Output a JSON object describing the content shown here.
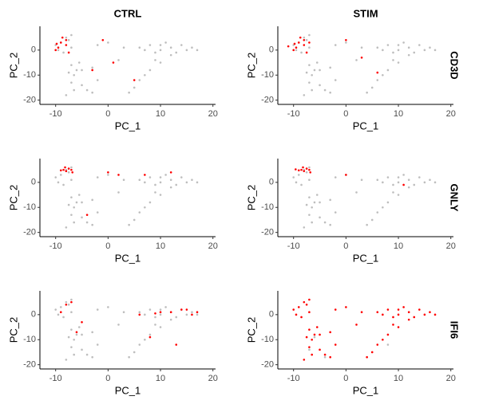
{
  "chart_data": [
    {
      "type": "scatter",
      "title": "CTRL",
      "xlabel": "PC_1",
      "ylabel": "PC_2",
      "xlim": [
        -13,
        20.5
      ],
      "ylim": [
        -21.7,
        9.5
      ],
      "xticks": [
        -10,
        0,
        10,
        20
      ],
      "yticks": [
        -20,
        -10,
        0
      ],
      "series": [
        {
          "color": "#bebebe",
          "x": [
            -9,
            -8,
            -7,
            -9.5,
            -8.5,
            -7.5,
            -10,
            -7,
            -7,
            -6,
            -5.5,
            -6.5,
            -7.5,
            -5,
            -7,
            -6.5,
            -8,
            -5,
            -4,
            -3,
            -2,
            6,
            8,
            10,
            12,
            14,
            11,
            9,
            13,
            15,
            16,
            7,
            10,
            12,
            17,
            10,
            8,
            6,
            5,
            7,
            4,
            9,
            0,
            -2,
            2,
            -3,
            3
          ],
          "y": [
            3,
            5,
            1,
            0,
            -1,
            4,
            2,
            6,
            -6,
            -8,
            -5,
            -10,
            -9,
            -8,
            -13,
            -16,
            -18,
            -14,
            -16,
            -17,
            -12,
            1,
            2,
            0,
            1,
            2,
            3,
            -1,
            -1,
            0,
            1,
            0,
            2,
            -2,
            0,
            -5,
            -8,
            -12,
            -15,
            -10,
            -17,
            -4,
            3,
            2,
            -4,
            -7,
            1
          ]
        },
        {
          "color": "#ff0000",
          "x": [
            -9,
            -8,
            -9.5,
            -8,
            -10,
            -7.5,
            -8.7,
            -9.8,
            1,
            5,
            -3,
            -1
          ],
          "y": [
            3,
            2,
            1,
            4,
            0,
            -1,
            5,
            2.5,
            -5,
            -12,
            -8,
            4
          ]
        }
      ]
    },
    {
      "type": "scatter",
      "title": "STIM",
      "row_label": "CD3D",
      "xlabel": "PC_1",
      "ylabel": "PC_2",
      "xlim": [
        -13,
        20.5
      ],
      "ylim": [
        -21.7,
        9.5
      ],
      "xticks": [
        -10,
        0,
        10,
        20
      ],
      "yticks": [
        -20,
        -10,
        0
      ],
      "series": [
        {
          "color": "#bebebe",
          "x": [
            -9,
            -8,
            -7,
            -9.5,
            -8.5,
            -7.5,
            -10,
            -7,
            -7,
            -6,
            -5.5,
            -6.5,
            -7.5,
            -5,
            -7,
            -6.5,
            -8,
            -5,
            -4,
            -3,
            -2,
            6,
            8,
            10,
            12,
            14,
            11,
            9,
            13,
            15,
            16,
            7,
            10,
            12,
            17,
            10,
            8,
            6,
            5,
            7,
            4,
            9,
            0,
            -2,
            2,
            -3,
            3
          ],
          "y": [
            3,
            5,
            1,
            0,
            -1,
            4,
            2,
            6,
            -6,
            -8,
            -5,
            -10,
            -9,
            -8,
            -13,
            -16,
            -18,
            -14,
            -16,
            -17,
            -12,
            1,
            2,
            0,
            1,
            2,
            3,
            -1,
            -1,
            0,
            1,
            0,
            2,
            -2,
            0,
            -5,
            -8,
            -12,
            -15,
            -10,
            -17,
            -4,
            3,
            2,
            -4,
            -7,
            1
          ]
        },
        {
          "color": "#ff0000",
          "x": [
            -9,
            -8,
            -9.5,
            -8,
            -10,
            -7.5,
            -8.7,
            -9.8,
            -11,
            -7,
            0,
            6,
            3
          ],
          "y": [
            3,
            2,
            1,
            4,
            0,
            -1,
            5,
            2.5,
            1.5,
            3,
            4,
            -9,
            -3
          ]
        }
      ]
    },
    {
      "type": "scatter",
      "xlabel": "PC_1",
      "ylabel": "PC_2",
      "xlim": [
        -13,
        20.5
      ],
      "ylim": [
        -21.7,
        9.5
      ],
      "xticks": [
        -10,
        0,
        10,
        20
      ],
      "yticks": [
        -20,
        -10,
        0
      ],
      "series": [
        {
          "color": "#bebebe",
          "x": [
            -9,
            -8,
            -7,
            -9.5,
            -8.5,
            -7.5,
            -10,
            -7,
            -7,
            -6,
            -5.5,
            -6.5,
            -7.5,
            -5,
            -7,
            -6.5,
            -8,
            -5,
            -4,
            -3,
            -2,
            6,
            8,
            10,
            12,
            14,
            11,
            9,
            13,
            15,
            16,
            7,
            10,
            12,
            17,
            10,
            8,
            6,
            5,
            7,
            4,
            9,
            0,
            -2,
            2,
            -3,
            3
          ],
          "y": [
            3,
            5,
            1,
            0,
            -1,
            4,
            2,
            6,
            -6,
            -8,
            -5,
            -10,
            -9,
            -8,
            -13,
            -16,
            -18,
            -14,
            -16,
            -17,
            -12,
            1,
            2,
            0,
            1,
            2,
            3,
            -1,
            -1,
            0,
            1,
            0,
            2,
            -2,
            0,
            -5,
            -8,
            -12,
            -15,
            -10,
            -17,
            -4,
            3,
            2,
            -4,
            -7,
            1
          ]
        },
        {
          "color": "#ff0000",
          "x": [
            -8.5,
            -7.5,
            -8,
            -7,
            -9,
            -8.2,
            -6.8,
            12,
            2,
            0,
            -4,
            7
          ],
          "y": [
            5,
            5.5,
            4.5,
            5,
            4.8,
            6,
            4,
            4,
            3,
            4,
            -13,
            3
          ]
        }
      ]
    },
    {
      "type": "scatter",
      "row_label": "GNLY",
      "xlabel": "PC_1",
      "ylabel": "PC_2",
      "xlim": [
        -13,
        20.5
      ],
      "ylim": [
        -21.7,
        9.5
      ],
      "xticks": [
        -10,
        0,
        10,
        20
      ],
      "yticks": [
        -20,
        -10,
        0
      ],
      "series": [
        {
          "color": "#bebebe",
          "x": [
            -9,
            -8,
            -7,
            -9.5,
            -8.5,
            -7.5,
            -10,
            -7,
            -7,
            -6,
            -5.5,
            -6.5,
            -7.5,
            -5,
            -7,
            -6.5,
            -8,
            -5,
            -4,
            -3,
            -2,
            6,
            8,
            10,
            12,
            14,
            11,
            9,
            13,
            15,
            16,
            7,
            10,
            12,
            17,
            10,
            8,
            6,
            5,
            7,
            4,
            9,
            0,
            -2,
            2,
            -3,
            3
          ],
          "y": [
            3,
            5,
            1,
            0,
            -1,
            4,
            2,
            6,
            -6,
            -8,
            -5,
            -10,
            -9,
            -8,
            -13,
            -16,
            -18,
            -14,
            -16,
            -17,
            -12,
            1,
            2,
            0,
            1,
            2,
            3,
            -1,
            -1,
            0,
            1,
            0,
            2,
            -2,
            0,
            -5,
            -8,
            -12,
            -15,
            -10,
            -17,
            -4,
            3,
            2,
            -4,
            -7,
            1
          ]
        },
        {
          "color": "#ff0000",
          "x": [
            -8.5,
            -7.5,
            -8,
            -7,
            -9,
            -8.2,
            -6.8,
            -9.6,
            0,
            11
          ],
          "y": [
            5,
            5.5,
            4.5,
            5,
            4.8,
            6,
            4,
            5.2,
            3,
            -1
          ]
        }
      ]
    },
    {
      "type": "scatter",
      "xlabel": "PC_1",
      "ylabel": "PC_2",
      "xlim": [
        -13,
        20.5
      ],
      "ylim": [
        -21.7,
        9.5
      ],
      "xticks": [
        -10,
        0,
        10,
        20
      ],
      "yticks": [
        -20,
        -10,
        0
      ],
      "series": [
        {
          "color": "#bebebe",
          "x": [
            -9,
            -8,
            -7,
            -9.5,
            -8.5,
            -7.5,
            -10,
            -7,
            -7,
            -6,
            -5.5,
            -6.5,
            -7.5,
            -5,
            -7,
            -6.5,
            -8,
            -5,
            -4,
            -3,
            -2,
            6,
            8,
            10,
            12,
            14,
            11,
            9,
            13,
            15,
            16,
            7,
            10,
            12,
            17,
            10,
            8,
            6,
            5,
            7,
            4,
            9,
            0,
            -2,
            2,
            -3,
            3
          ],
          "y": [
            3,
            5,
            1,
            0,
            -1,
            4,
            2,
            6,
            -6,
            -8,
            -5,
            -10,
            -9,
            -8,
            -13,
            -16,
            -18,
            -14,
            -16,
            -17,
            -12,
            1,
            2,
            0,
            1,
            2,
            3,
            -1,
            -1,
            0,
            1,
            0,
            2,
            -2,
            0,
            -5,
            -8,
            -12,
            -15,
            -10,
            -17,
            -4,
            3,
            2,
            -4,
            -7,
            1
          ]
        },
        {
          "color": "#ff0000",
          "x": [
            -8,
            -6,
            10,
            14,
            16,
            12,
            8,
            -5,
            17,
            -7,
            13,
            15,
            6,
            -9,
            9
          ],
          "y": [
            4,
            -7,
            1,
            2,
            0,
            1,
            -9,
            -3,
            1,
            5,
            -12,
            2,
            0,
            1,
            0.5
          ]
        }
      ]
    },
    {
      "type": "scatter",
      "row_label": "IFI6",
      "xlabel": "PC_1",
      "ylabel": "PC_2",
      "xlim": [
        -13,
        20.5
      ],
      "ylim": [
        -21.7,
        9.5
      ],
      "xticks": [
        -10,
        0,
        10,
        20
      ],
      "yticks": [
        -20,
        -10,
        0
      ],
      "series": [
        {
          "color": "#bebebe",
          "x": [
            -6,
            -4,
            8,
            -7
          ],
          "y": [
            -9,
            -17,
            -12,
            -14
          ]
        },
        {
          "color": "#ff0000",
          "x": [
            -9,
            -8,
            -7,
            -9.5,
            -8.5,
            -7.5,
            -10,
            -7,
            -7,
            -6,
            -5.5,
            -6.5,
            -7.5,
            -5,
            -7,
            -6.5,
            -8,
            -5,
            -4,
            -3,
            -2,
            6,
            8,
            10,
            12,
            14,
            11,
            9,
            13,
            15,
            16,
            7,
            10,
            12,
            17,
            10,
            8,
            6,
            5,
            7,
            4,
            9,
            0,
            -2,
            2,
            -3,
            3
          ],
          "y": [
            3,
            5,
            1,
            0,
            -1,
            4,
            2,
            6,
            -6,
            -8,
            -5,
            -10,
            -9,
            -8,
            -13,
            -16,
            -18,
            -14,
            -16,
            -17,
            -12,
            1,
            2,
            0,
            1,
            2,
            3,
            -1,
            -1,
            0,
            1,
            0,
            2,
            -2,
            0,
            -5,
            -8,
            -12,
            -15,
            -10,
            -17,
            -4,
            3,
            2,
            -4,
            -7,
            1
          ]
        }
      ]
    }
  ]
}
